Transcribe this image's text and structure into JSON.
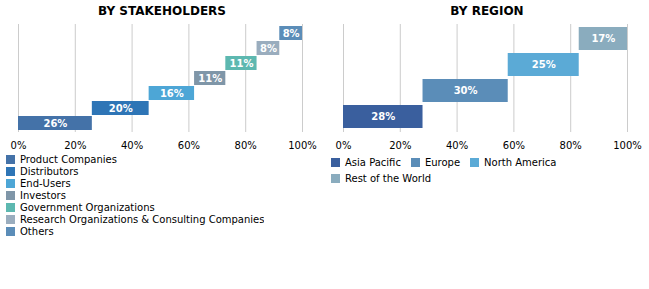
{
  "chart_data": [
    {
      "type": "waterfall",
      "orientation": "horizontal",
      "title": "BY STAKEHOLDERS",
      "categories": [
        "Product Companies",
        "Distributors",
        "End-Users",
        "Investors",
        "Government Organizations",
        "Research Organizations & Consulting Companies",
        "Others"
      ],
      "values": [
        26,
        20,
        16,
        11,
        11,
        8,
        8
      ],
      "colors": [
        "#4472a8",
        "#2e75b6",
        "#4da6d6",
        "#7f96a8",
        "#5db8b0",
        "#9aadbe",
        "#5b8db8"
      ],
      "data_labels": true,
      "value_labels": [
        "26%",
        "20%",
        "16%",
        "11%",
        "11%",
        "8%",
        "8%"
      ],
      "xlim": [
        0,
        100
      ],
      "xticks": [
        {
          "value": 0,
          "label": "0%"
        },
        {
          "value": 20,
          "label": "20%"
        },
        {
          "value": 40,
          "label": "40%"
        },
        {
          "value": 60,
          "label": "60%"
        },
        {
          "value": 80,
          "label": "80%"
        },
        {
          "value": 100,
          "label": "100%"
        }
      ],
      "grid": true,
      "legend": "bottom",
      "tick_labels": "x"
    },
    {
      "type": "waterfall",
      "orientation": "horizontal",
      "title": "BY REGION",
      "categories": [
        "Asia Pacific",
        "Europe",
        "North America",
        "Rest of the World"
      ],
      "values": [
        28,
        30,
        25,
        17
      ],
      "colors": [
        "#3a5f9e",
        "#5b8db8",
        "#5baad6",
        "#8aacbe"
      ],
      "data_labels": true,
      "value_labels": [
        "28%",
        "30%",
        "25%",
        "17%"
      ],
      "xlim": [
        0,
        100
      ],
      "xticks": [
        {
          "value": 0,
          "label": "0%"
        },
        {
          "value": 20,
          "label": "20%"
        },
        {
          "value": 40,
          "label": "40%"
        },
        {
          "value": 60,
          "label": "60%"
        },
        {
          "value": 80,
          "label": "80%"
        },
        {
          "value": 100,
          "label": "100%"
        }
      ],
      "grid": true,
      "legend": "bottom",
      "tick_labels": "x"
    }
  ]
}
